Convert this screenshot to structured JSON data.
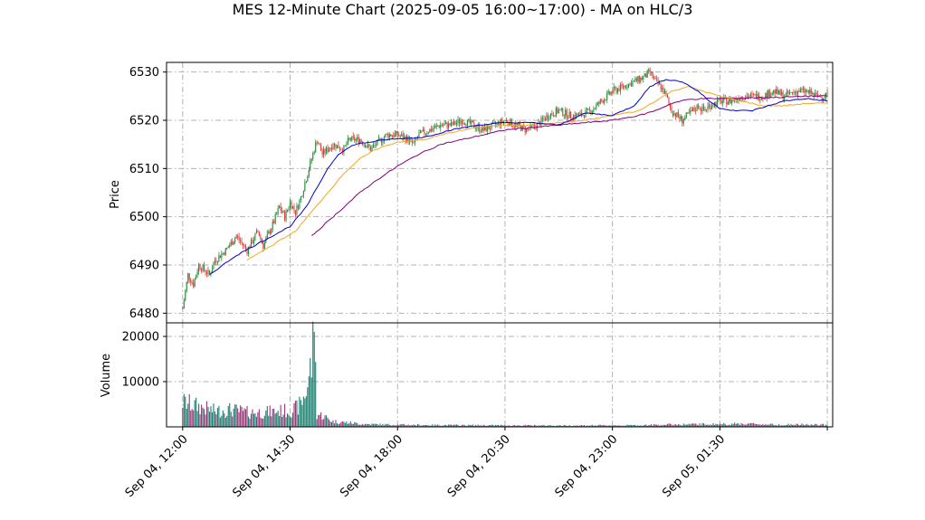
{
  "chart_data": {
    "type": "candlestick",
    "title": "MES 12-Minute Chart (2025-09-05 16:00~17:00) - MA on HLC/3",
    "price_panel": {
      "ylabel": "Price",
      "ylim": [
        6478,
        6532
      ],
      "yticks": [
        6480,
        6490,
        6500,
        6510,
        6520,
        6530
      ],
      "ytick_labels": [
        "6480",
        "6490",
        "6500",
        "6510",
        "6520",
        "6530"
      ],
      "grid": true
    },
    "volume_panel": {
      "ylabel": "Volume",
      "ylim": [
        0,
        23000
      ],
      "yticks": [
        10000,
        20000
      ],
      "ytick_labels": [
        "10000",
        "20000"
      ],
      "grid": true
    },
    "xlim": [
      -3,
      121
    ],
    "xticks": [
      {
        "index": 0,
        "label": "Sep 04, 12:00"
      },
      {
        "index": 20,
        "label": "Sep 04, 14:30"
      },
      {
        "index": 40,
        "label": "Sep 04, 18:00"
      },
      {
        "index": 60,
        "label": "Sep 04, 20:30"
      },
      {
        "index": 80,
        "label": "Sep 04, 23:00"
      },
      {
        "index": 100,
        "label": "Sep 05, 01:30"
      },
      {
        "index": 120,
        "label": ""
      }
    ],
    "colors": {
      "up": "#2e8b3e",
      "down": "#e0413b",
      "vol_up": "#1a7f6e",
      "vol_down": "#9b3a7a",
      "ma_fast": "#0000cc",
      "ma_mid": "#f5a623",
      "ma_slow": "#800080"
    },
    "anchors": [
      [
        0,
        6481
      ],
      [
        1,
        6488
      ],
      [
        2,
        6486
      ],
      [
        3,
        6490
      ],
      [
        5,
        6488
      ],
      [
        6,
        6491
      ],
      [
        8,
        6493
      ],
      [
        10,
        6496
      ],
      [
        12,
        6493
      ],
      [
        13,
        6495
      ],
      [
        14,
        6497
      ],
      [
        15,
        6494
      ],
      [
        17,
        6499
      ],
      [
        18,
        6502
      ],
      [
        19,
        6500
      ],
      [
        20,
        6503
      ],
      [
        21,
        6501
      ],
      [
        22,
        6504
      ],
      [
        23,
        6508
      ],
      [
        24,
        6512
      ],
      [
        25,
        6516
      ],
      [
        26,
        6513
      ],
      [
        28,
        6515
      ],
      [
        30,
        6514
      ],
      [
        31,
        6516
      ],
      [
        33,
        6516
      ],
      [
        35,
        6514
      ],
      [
        37,
        6516
      ],
      [
        38,
        6517
      ],
      [
        40,
        6517
      ],
      [
        42,
        6516
      ],
      [
        43,
        6515
      ],
      [
        44,
        6517
      ],
      [
        46,
        6518
      ],
      [
        48,
        6519
      ],
      [
        50,
        6519
      ],
      [
        52,
        6520
      ],
      [
        54,
        6519
      ],
      [
        56,
        6518
      ],
      [
        58,
        6519
      ],
      [
        60,
        6520
      ],
      [
        62,
        6519
      ],
      [
        64,
        6518
      ],
      [
        66,
        6519
      ],
      [
        68,
        6521
      ],
      [
        70,
        6522
      ],
      [
        72,
        6521
      ],
      [
        74,
        6521
      ],
      [
        76,
        6522
      ],
      [
        78,
        6524
      ],
      [
        80,
        6526
      ],
      [
        82,
        6527
      ],
      [
        84,
        6528
      ],
      [
        86,
        6529
      ],
      [
        87,
        6530
      ],
      [
        88,
        6528
      ],
      [
        89,
        6527
      ],
      [
        90,
        6525
      ],
      [
        91,
        6522
      ],
      [
        92,
        6521
      ],
      [
        93,
        6520
      ],
      [
        94,
        6521
      ],
      [
        95,
        6522
      ],
      [
        96,
        6523
      ],
      [
        97,
        6522
      ],
      [
        98,
        6523
      ],
      [
        100,
        6524
      ],
      [
        102,
        6524
      ],
      [
        104,
        6525
      ],
      [
        106,
        6525
      ],
      [
        108,
        6525
      ],
      [
        110,
        6526
      ],
      [
        112,
        6525
      ],
      [
        114,
        6526
      ],
      [
        116,
        6526
      ],
      [
        118,
        6525
      ],
      [
        119,
        6525
      ],
      [
        120,
        6525.5
      ]
    ],
    "ma_fast": [
      [
        5,
        6488
      ],
      [
        10,
        6492
      ],
      [
        15,
        6495
      ],
      [
        20,
        6498
      ],
      [
        23,
        6502
      ],
      [
        25,
        6506
      ],
      [
        27,
        6510
      ],
      [
        29,
        6513
      ],
      [
        32,
        6515
      ],
      [
        38,
        6516
      ],
      [
        45,
        6516.5
      ],
      [
        50,
        6518
      ],
      [
        55,
        6519
      ],
      [
        60,
        6519.5
      ],
      [
        65,
        6519.5
      ],
      [
        70,
        6519
      ],
      [
        75,
        6521.5
      ],
      [
        80,
        6521
      ],
      [
        84,
        6523
      ],
      [
        87,
        6527
      ],
      [
        90,
        6528.5
      ],
      [
        93,
        6528
      ],
      [
        96,
        6526
      ],
      [
        98,
        6524
      ],
      [
        100,
        6522.5
      ],
      [
        103,
        6522
      ],
      [
        106,
        6522
      ],
      [
        109,
        6523
      ],
      [
        112,
        6524
      ],
      [
        116,
        6524.5
      ],
      [
        120,
        6524
      ]
    ],
    "ma_mid": [
      [
        12,
        6491
      ],
      [
        15,
        6493
      ],
      [
        18,
        6495
      ],
      [
        21,
        6497
      ],
      [
        24,
        6501
      ],
      [
        27,
        6505
      ],
      [
        30,
        6509
      ],
      [
        33,
        6512
      ],
      [
        36,
        6514
      ],
      [
        40,
        6515.5
      ],
      [
        45,
        6516
      ],
      [
        50,
        6517.5
      ],
      [
        55,
        6518.5
      ],
      [
        60,
        6519
      ],
      [
        65,
        6519
      ],
      [
        70,
        6519.5
      ],
      [
        75,
        6520
      ],
      [
        80,
        6521
      ],
      [
        85,
        6522
      ],
      [
        88,
        6524
      ],
      [
        91,
        6526
      ],
      [
        94,
        6527
      ],
      [
        97,
        6526
      ],
      [
        100,
        6525
      ],
      [
        104,
        6524
      ],
      [
        108,
        6523
      ],
      [
        112,
        6523
      ],
      [
        116,
        6523.5
      ],
      [
        120,
        6523.5
      ]
    ],
    "ma_slow": [
      [
        24,
        6496
      ],
      [
        27,
        6499
      ],
      [
        30,
        6502
      ],
      [
        33,
        6505
      ],
      [
        36,
        6507.5
      ],
      [
        40,
        6510.5
      ],
      [
        44,
        6513
      ],
      [
        48,
        6515
      ],
      [
        52,
        6516
      ],
      [
        56,
        6517
      ],
      [
        60,
        6518
      ],
      [
        65,
        6518.5
      ],
      [
        70,
        6519
      ],
      [
        75,
        6519.5
      ],
      [
        80,
        6520
      ],
      [
        85,
        6521
      ],
      [
        88,
        6522
      ],
      [
        91,
        6523.5
      ],
      [
        94,
        6524.3
      ],
      [
        97,
        6524.5
      ],
      [
        100,
        6524.5
      ],
      [
        104,
        6524.6
      ],
      [
        108,
        6524.7
      ],
      [
        112,
        6524.8
      ],
      [
        116,
        6525
      ],
      [
        120,
        6525
      ]
    ],
    "volume_profile": [
      [
        0,
        5500
      ],
      [
        3,
        4500
      ],
      [
        6,
        3500
      ],
      [
        9,
        3800
      ],
      [
        12,
        3200
      ],
      [
        15,
        3200
      ],
      [
        18,
        3500
      ],
      [
        20,
        3600
      ],
      [
        21,
        4000
      ],
      [
        22,
        5000
      ],
      [
        23,
        8000
      ],
      [
        24,
        14000
      ],
      [
        24.5,
        21000
      ],
      [
        25,
        2800
      ],
      [
        26,
        2500
      ],
      [
        28,
        1200
      ],
      [
        31,
        900
      ],
      [
        34,
        600
      ],
      [
        38,
        500
      ],
      [
        45,
        400
      ],
      [
        55,
        350
      ],
      [
        70,
        300
      ],
      [
        85,
        350
      ],
      [
        90,
        500
      ],
      [
        100,
        600
      ],
      [
        105,
        700
      ],
      [
        110,
        500
      ],
      [
        115,
        500
      ],
      [
        120,
        450
      ]
    ]
  }
}
